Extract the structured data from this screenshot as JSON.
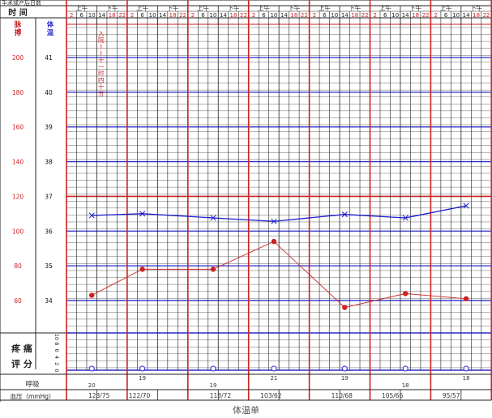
{
  "chart_data": {
    "type": "line",
    "title": "体温单",
    "header": {
      "top_left_fragment": "手术或产后日数",
      "time_label": "时  间",
      "am_label": "上午",
      "pm_label": "下午",
      "hours": [
        "2",
        "6",
        "10",
        "14",
        "18",
        "22"
      ]
    },
    "left_axes": {
      "pulse_title": "脉搏",
      "temp_title": "体温",
      "pulse_ticks": [
        "200",
        "180",
        "160",
        "140",
        "120",
        "100",
        "80",
        "60"
      ],
      "temp_ticks": [
        "41",
        "40",
        "39",
        "38",
        "37",
        "36",
        "35",
        "34"
      ]
    },
    "annotation": "入院——十一时四十分",
    "pain_label_1": "疼 痛",
    "pain_label_2": "评 分",
    "pain_ticks": [
      "10",
      "8",
      "6",
      "4",
      "2",
      "0"
    ],
    "respiration_label": "呼吸",
    "bp_label": "血压（mmHg）",
    "days": 7,
    "slots_per_day": 6,
    "series": [
      {
        "name": "体温",
        "color": "#1a1acc",
        "marker": "x",
        "points": [
          {
            "day": 0,
            "slot": 2,
            "value": 36.45
          },
          {
            "day": 1,
            "slot": 1,
            "value": 36.5
          },
          {
            "day": 2,
            "slot": 2,
            "value": 36.38
          },
          {
            "day": 3,
            "slot": 2,
            "value": 36.28
          },
          {
            "day": 4,
            "slot": 3,
            "value": 36.48
          },
          {
            "day": 5,
            "slot": 3,
            "value": 36.38
          },
          {
            "day": 6,
            "slot": 3,
            "value": 36.73
          }
        ]
      },
      {
        "name": "脉搏",
        "color": "#cc2222",
        "marker": "dot",
        "points": [
          {
            "day": 0,
            "slot": 2,
            "value": 63
          },
          {
            "day": 1,
            "slot": 1,
            "value": 78
          },
          {
            "day": 2,
            "slot": 2,
            "value": 78
          },
          {
            "day": 3,
            "slot": 2,
            "value": 94
          },
          {
            "day": 4,
            "slot": 3,
            "value": 56
          },
          {
            "day": 5,
            "slot": 3,
            "value": 64
          },
          {
            "day": 6,
            "slot": 3,
            "value": 61
          }
        ]
      }
    ],
    "pain_scores": [
      {
        "day": 0,
        "slot": 2,
        "value": 0
      },
      {
        "day": 1,
        "slot": 1,
        "value": 0
      },
      {
        "day": 2,
        "slot": 2,
        "value": 0
      },
      {
        "day": 3,
        "slot": 2,
        "value": 0
      },
      {
        "day": 4,
        "slot": 3,
        "value": 0
      },
      {
        "day": 5,
        "slot": 3,
        "value": 0
      },
      {
        "day": 6,
        "slot": 3,
        "value": 0
      }
    ],
    "respiration": [
      {
        "day": 0,
        "slot": 2,
        "value": "20",
        "pos": "low"
      },
      {
        "day": 1,
        "slot": 1,
        "value": "19",
        "pos": "high"
      },
      {
        "day": 2,
        "slot": 2,
        "value": "19",
        "pos": "low"
      },
      {
        "day": 3,
        "slot": 2,
        "value": "21",
        "pos": "high"
      },
      {
        "day": 4,
        "slot": 3,
        "value": "19",
        "pos": "high"
      },
      {
        "day": 5,
        "slot": 3,
        "value": "18",
        "pos": "low"
      },
      {
        "day": 6,
        "slot": 3,
        "value": "18",
        "pos": "high"
      }
    ],
    "blood_pressure": [
      {
        "day": 0,
        "slot": 2,
        "value": "123/75"
      },
      {
        "day": 1,
        "slot": 0,
        "value": "122/70"
      },
      {
        "day": 2,
        "slot": 2,
        "value": "118/72"
      },
      {
        "day": 3,
        "slot": 1,
        "value": "103/62"
      },
      {
        "day": 4,
        "slot": 2,
        "value": "110/68"
      },
      {
        "day": 5,
        "slot": 1,
        "value": "105/66"
      },
      {
        "day": 6,
        "slot": 1,
        "value": "95/57"
      }
    ]
  }
}
